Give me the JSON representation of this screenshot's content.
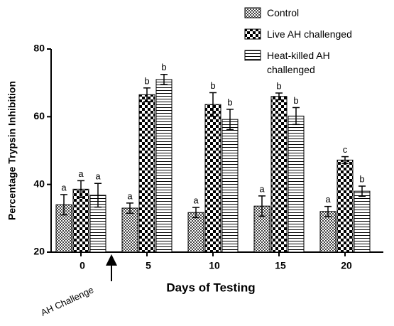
{
  "chart_data": {
    "type": "bar",
    "xlabel": "Days of Testing",
    "ylabel": "Percentage Trypsin Inhibition",
    "annotation": "AH Challenge",
    "categories": [
      "0",
      "5",
      "10",
      "15",
      "20"
    ],
    "ylim": [
      20,
      80
    ],
    "yticks": [
      20,
      40,
      60,
      80
    ],
    "series": [
      {
        "name": "Control",
        "color": "#000000",
        "pattern": "checker-fine",
        "values": [
          34,
          33,
          31.7,
          33.6,
          32
        ],
        "errors": [
          3,
          1.5,
          1.5,
          3,
          1.5
        ],
        "significance": [
          "a",
          "a",
          "a",
          "a",
          "a"
        ]
      },
      {
        "name": "Live AH challenged",
        "color": "#000000",
        "pattern": "checker-coarse",
        "values": [
          38.6,
          66.5,
          63.6,
          66,
          47.2
        ],
        "errors": [
          2.5,
          2,
          3.5,
          1,
          1
        ],
        "significance": [
          "a",
          "b",
          "b",
          "b",
          "c"
        ]
      },
      {
        "name": "Heat-killed AH challenged",
        "color": "#000000",
        "pattern": "horizontal-lines",
        "values": [
          36.8,
          71,
          59.2,
          60.2,
          38
        ],
        "errors": [
          3.5,
          1.5,
          3,
          2.5,
          1.5
        ],
        "significance": [
          "a",
          "b",
          "b",
          "b",
          "b"
        ]
      }
    ]
  }
}
